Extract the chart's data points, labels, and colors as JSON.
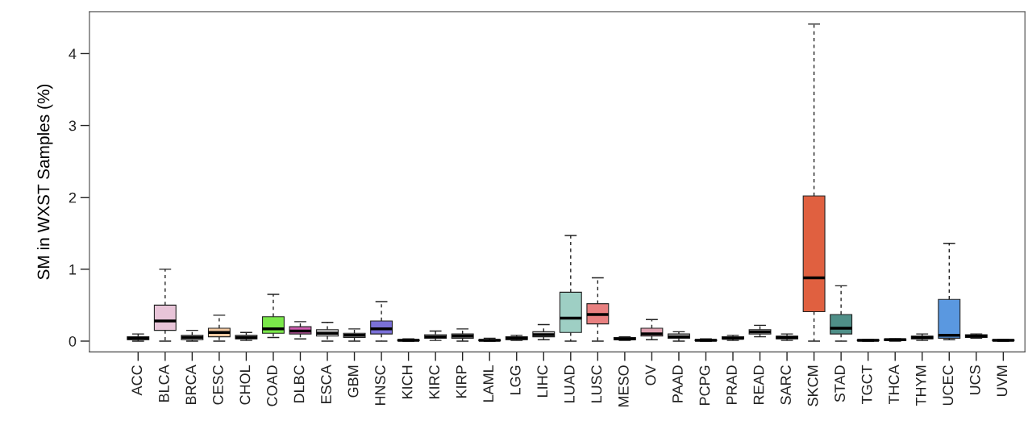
{
  "chart_data": {
    "type": "box",
    "ylabel": "SM in WXST Samples (%)",
    "categories": [
      "ACC",
      "BLCA",
      "BRCA",
      "CESC",
      "CHOL",
      "COAD",
      "DLBC",
      "ESCA",
      "GBM",
      "HNSC",
      "KICH",
      "KIRC",
      "KIRP",
      "LAML",
      "LGG",
      "LIHC",
      "LUAD",
      "LUSC",
      "MESO",
      "OV",
      "PAAD",
      "PCPG",
      "PRAD",
      "READ",
      "SARC",
      "SKCM",
      "STAD",
      "TGCT",
      "THCA",
      "THYM",
      "UCEC",
      "UCS",
      "UVM"
    ],
    "boxes": [
      {
        "low": 0,
        "q1": 0.02,
        "median": 0.04,
        "q3": 0.06,
        "high": 0.1
      },
      {
        "low": 0,
        "q1": 0.15,
        "median": 0.28,
        "q3": 0.5,
        "high": 1.0
      },
      {
        "low": 0,
        "q1": 0.02,
        "median": 0.05,
        "q3": 0.08,
        "high": 0.15
      },
      {
        "low": 0,
        "q1": 0.06,
        "median": 0.12,
        "q3": 0.18,
        "high": 0.36
      },
      {
        "low": 0.01,
        "q1": 0.03,
        "median": 0.05,
        "q3": 0.08,
        "high": 0.12
      },
      {
        "low": 0.05,
        "q1": 0.11,
        "median": 0.17,
        "q3": 0.34,
        "high": 0.65
      },
      {
        "low": 0.03,
        "q1": 0.1,
        "median": 0.14,
        "q3": 0.2,
        "high": 0.27
      },
      {
        "low": 0,
        "q1": 0.07,
        "median": 0.11,
        "q3": 0.16,
        "high": 0.26
      },
      {
        "low": 0,
        "q1": 0.05,
        "median": 0.08,
        "q3": 0.11,
        "high": 0.17
      },
      {
        "low": 0,
        "q1": 0.1,
        "median": 0.17,
        "q3": 0.28,
        "high": 0.55
      },
      {
        "low": 0,
        "q1": 0.005,
        "median": 0.01,
        "q3": 0.02,
        "high": 0.03
      },
      {
        "low": 0.01,
        "q1": 0.04,
        "median": 0.06,
        "q3": 0.09,
        "high": 0.14
      },
      {
        "low": 0,
        "q1": 0.04,
        "median": 0.07,
        "q3": 0.1,
        "high": 0.17
      },
      {
        "low": 0,
        "q1": 0.005,
        "median": 0.01,
        "q3": 0.02,
        "high": 0.04
      },
      {
        "low": 0.01,
        "q1": 0.02,
        "median": 0.04,
        "q3": 0.06,
        "high": 0.08
      },
      {
        "low": 0.02,
        "q1": 0.06,
        "median": 0.09,
        "q3": 0.13,
        "high": 0.23
      },
      {
        "low": 0,
        "q1": 0.12,
        "median": 0.32,
        "q3": 0.68,
        "high": 1.47
      },
      {
        "low": 0,
        "q1": 0.24,
        "median": 0.37,
        "q3": 0.52,
        "high": 0.88
      },
      {
        "low": 0.01,
        "q1": 0.02,
        "median": 0.03,
        "q3": 0.05,
        "high": 0.06
      },
      {
        "low": 0.02,
        "q1": 0.07,
        "median": 0.1,
        "q3": 0.18,
        "high": 0.3
      },
      {
        "low": 0,
        "q1": 0.04,
        "median": 0.06,
        "q3": 0.1,
        "high": 0.13
      },
      {
        "low": 0,
        "q1": 0.005,
        "median": 0.01,
        "q3": 0.02,
        "high": 0.03
      },
      {
        "low": 0.01,
        "q1": 0.03,
        "median": 0.04,
        "q3": 0.06,
        "high": 0.08
      },
      {
        "low": 0.06,
        "q1": 0.1,
        "median": 0.13,
        "q3": 0.16,
        "high": 0.22
      },
      {
        "low": 0.01,
        "q1": 0.03,
        "median": 0.05,
        "q3": 0.07,
        "high": 0.1
      },
      {
        "low": 0,
        "q1": 0.41,
        "median": 0.88,
        "q3": 2.02,
        "high": 4.41
      },
      {
        "low": 0,
        "q1": 0.1,
        "median": 0.18,
        "q3": 0.37,
        "high": 0.77
      },
      {
        "low": 0,
        "q1": 0.005,
        "median": 0.01,
        "q3": 0.02,
        "high": 0.02
      },
      {
        "low": 0,
        "q1": 0.01,
        "median": 0.02,
        "q3": 0.03,
        "high": 0.03
      },
      {
        "low": 0.01,
        "q1": 0.03,
        "median": 0.05,
        "q3": 0.07,
        "high": 0.1
      },
      {
        "low": 0.02,
        "q1": 0.04,
        "median": 0.08,
        "q3": 0.58,
        "high": 1.36
      },
      {
        "low": 0.04,
        "q1": 0.05,
        "median": 0.07,
        "q3": 0.09,
        "high": 0.1
      },
      {
        "low": 0,
        "q1": 0.005,
        "median": 0.01,
        "q3": 0.02,
        "high": 0.02
      }
    ],
    "colors": [
      "#c8c8c8",
      "#e8c4d8",
      "#c8c8c8",
      "#f2c8a0",
      "#c8c8c8",
      "#7ae84a",
      "#d05cb0",
      "#c8c8c8",
      "#c8c8c8",
      "#7a70d8",
      "#c8c8c8",
      "#c8c8c8",
      "#c8c8c8",
      "#c8c8c8",
      "#c8c8c8",
      "#c8c8c8",
      "#9ecfc4",
      "#e88080",
      "#c8c8c8",
      "#e0a0b0",
      "#c8c8c8",
      "#c8c8c8",
      "#c8c8c8",
      "#c8c8c8",
      "#c8c8c8",
      "#e06040",
      "#4f8f88",
      "#c8c8c8",
      "#c8c8c8",
      "#c8c8c8",
      "#5a98e0",
      "#c8c8c8",
      "#c8c8c8"
    ],
    "ylim": [
      -0.15,
      4.58
    ],
    "yticks": [
      0,
      1,
      2,
      3,
      4
    ],
    "grid": false,
    "legend": false
  }
}
